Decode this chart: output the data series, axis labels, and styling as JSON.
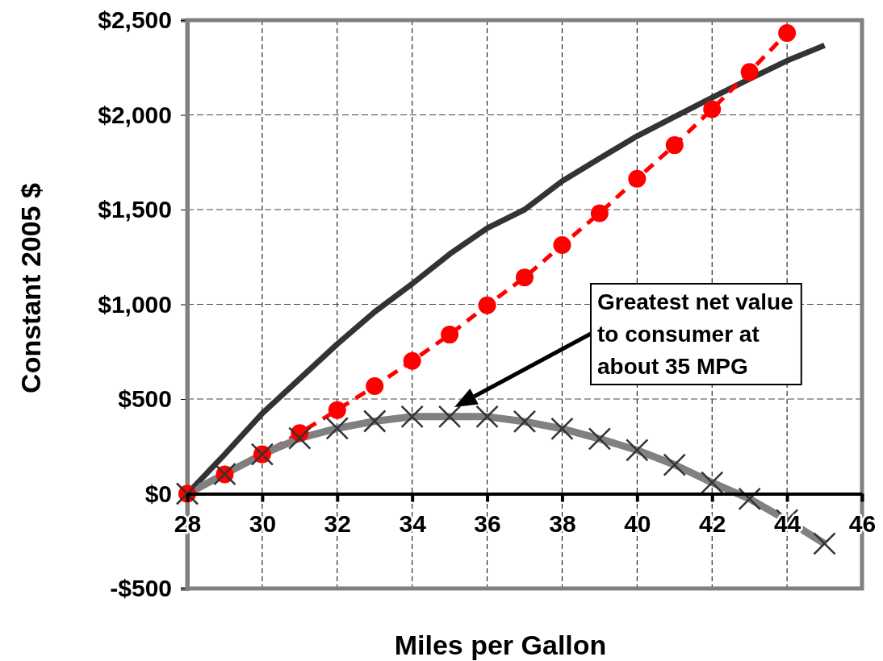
{
  "chart_data": {
    "type": "line",
    "xlabel": "Miles per Gallon",
    "ylabel": "Constant 2005 $",
    "x": [
      28,
      29,
      30,
      31,
      32,
      33,
      34,
      35,
      36,
      37,
      38,
      39,
      40,
      41,
      42,
      43,
      44,
      45
    ],
    "series": [
      {
        "color": "#333333",
        "marker": "none",
        "line_style": "solid",
        "values": [
          0,
          208,
          424,
          607,
          790,
          960,
          1108,
          1265,
          1402,
          1500,
          1650,
          1770,
          1888,
          1990,
          2091,
          2190,
          2286,
          2367
        ]
      },
      {
        "color": "#ff0000",
        "marker": "circle",
        "line_style": "dashed",
        "x": [
          28,
          29,
          30,
          31,
          32,
          33,
          34,
          35,
          36,
          37,
          38,
          39,
          40,
          41,
          42,
          43,
          44
        ],
        "values": [
          0,
          102,
          208,
          320,
          442,
          568,
          701,
          840,
          995,
          1142,
          1313,
          1481,
          1663,
          1840,
          2030,
          2227,
          2432
        ]
      },
      {
        "color": "#808080",
        "marker": "cross",
        "line_style": "solid",
        "values": [
          0,
          104,
          208,
          293,
          345,
          383,
          407,
          407,
          407,
          381,
          343,
          290,
          230,
          153,
          59,
          -27,
          -140,
          -263
        ]
      }
    ],
    "xlim": [
      28,
      46
    ],
    "xticks": [
      28,
      30,
      32,
      34,
      36,
      38,
      40,
      42,
      44,
      46
    ],
    "ylim": [
      -500,
      2500
    ],
    "yticks": [
      {
        "value": -500,
        "label": "-$500"
      },
      {
        "value": 0,
        "label": "$0"
      },
      {
        "value": 500,
        "label": "$500"
      },
      {
        "value": 1000,
        "label": "$1,000"
      },
      {
        "value": 1500,
        "label": "$1,500"
      },
      {
        "value": 2000,
        "label": "$2,000"
      },
      {
        "value": 2500,
        "label": "$2,500"
      }
    ],
    "grid": true,
    "annotations": [
      "Greatest net value\nto consumer at\nabout 35 MPG"
    ]
  }
}
